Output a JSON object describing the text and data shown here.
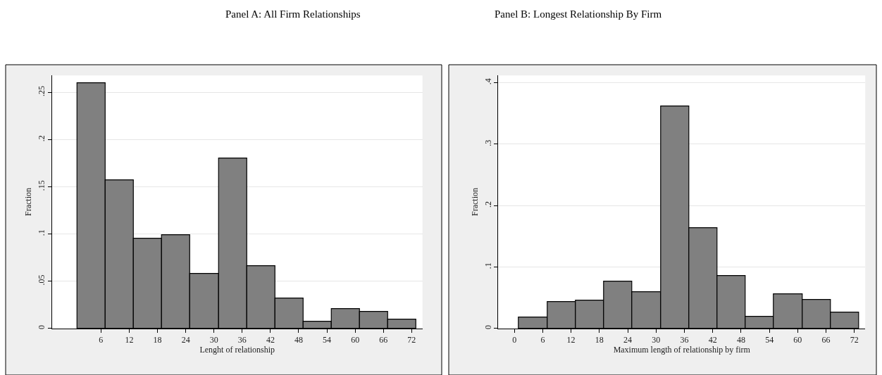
{
  "chart_data": [
    {
      "type": "histogram",
      "title": "Panel A: All Firm Relationships",
      "xlabel": "Lenght of relationship",
      "ylabel": "Fraction",
      "color": "#808080",
      "bins": [
        1,
        7,
        13,
        19,
        25,
        31,
        37,
        43,
        49,
        55,
        61,
        67,
        73
      ],
      "values": [
        0.26,
        0.157,
        0.095,
        0.099,
        0.058,
        0.18,
        0.066,
        0.032,
        0.0074,
        0.021,
        0.018,
        0.0095
      ],
      "xlim": [
        -4.4,
        74.3
      ],
      "xticks": [
        6,
        12,
        18,
        24,
        30,
        36,
        42,
        48,
        54,
        60,
        66,
        72
      ],
      "ylim": [
        0,
        0.268
      ],
      "yticks": [
        {
          "value": 0,
          "label": "0"
        },
        {
          "value": 0.05,
          "label": ".05"
        },
        {
          "value": 0.1,
          "label": ".1"
        },
        {
          "value": 0.15,
          "label": ".15"
        },
        {
          "value": 0.2,
          "label": ".2"
        },
        {
          "value": 0.25,
          "label": ".25"
        }
      ],
      "grid": "y"
    },
    {
      "type": "histogram",
      "title": "Panel B: Longest Relationship By Firm",
      "xlabel": "Maximum length of relationship by firm",
      "ylabel": "Fraction",
      "color": "#808080",
      "bins": [
        1,
        7,
        13,
        19,
        25,
        31,
        37,
        43,
        49,
        55,
        61,
        67,
        73
      ],
      "values": [
        0.018,
        0.043,
        0.045,
        0.076,
        0.059,
        0.362,
        0.163,
        0.086,
        0.019,
        0.056,
        0.047,
        0.026
      ],
      "xlim": [
        -3.4,
        74.3
      ],
      "xticks": [
        0,
        6,
        12,
        18,
        24,
        30,
        36,
        42,
        48,
        54,
        60,
        66,
        72
      ],
      "ylim": [
        0,
        0.412
      ],
      "yticks": [
        {
          "value": 0,
          "label": "0"
        },
        {
          "value": 0.1,
          "label": ".1"
        },
        {
          "value": 0.2,
          "label": ".2"
        },
        {
          "value": 0.3,
          "label": ".3"
        },
        {
          "value": 0.4,
          "label": ".4"
        }
      ],
      "grid": "y"
    }
  ]
}
